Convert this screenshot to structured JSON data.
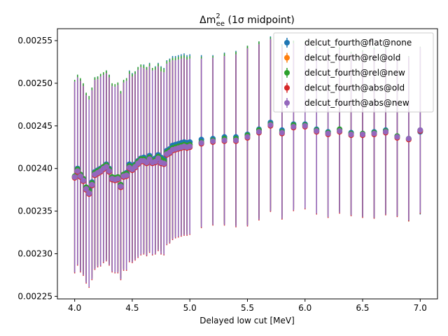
{
  "chart_data": {
    "type": "scatter",
    "title_main": "Δm",
    "title_sup": "2",
    "title_sub": "ee",
    "title_rest": " (1σ midpoint)",
    "xlabel": "Delayed low cut [MeV]",
    "ylabel": "",
    "xlim": [
      3.85,
      7.15
    ],
    "ylim": [
      0.002247,
      0.002564
    ],
    "xticks": [
      4.0,
      4.5,
      5.0,
      5.5,
      6.0,
      6.5,
      7.0
    ],
    "xtick_labels": [
      "4.0",
      "4.5",
      "5.0",
      "5.5",
      "6.0",
      "6.5",
      "7.0"
    ],
    "yticks": [
      0.00225,
      0.0023,
      0.00235,
      0.0024,
      0.00245,
      0.0025,
      0.00255
    ],
    "ytick_labels": [
      "0.00225",
      "0.00230",
      "0.00235",
      "0.00240",
      "0.00245",
      "0.00250",
      "0.00255"
    ],
    "grid": false,
    "legend_position": "top-right",
    "x": [
      4.0,
      4.025,
      4.05,
      4.075,
      4.1,
      4.125,
      4.15,
      4.175,
      4.2,
      4.225,
      4.25,
      4.275,
      4.3,
      4.325,
      4.35,
      4.375,
      4.4,
      4.425,
      4.45,
      4.475,
      4.5,
      4.525,
      4.55,
      4.575,
      4.6,
      4.625,
      4.65,
      4.675,
      4.7,
      4.725,
      4.75,
      4.775,
      4.8,
      4.825,
      4.85,
      4.875,
      4.9,
      4.925,
      4.95,
      4.975,
      5.0,
      5.1,
      5.2,
      5.3,
      5.4,
      5.5,
      5.6,
      5.7,
      5.8,
      5.9,
      6.0,
      6.1,
      6.2,
      6.3,
      6.4,
      6.5,
      6.6,
      6.7,
      6.8,
      6.9,
      7.0
    ],
    "series": [
      {
        "name": "delcut_fourth@flat@none",
        "color": "#1f77b4",
        "y": [
          0.00239,
          0.0024,
          0.002393,
          0.002388,
          0.002378,
          0.002375,
          0.002384,
          0.002396,
          0.002398,
          0.0024,
          0.002402,
          0.002405,
          0.0024,
          0.00239,
          0.002389,
          0.00239,
          0.002381,
          0.002393,
          0.002395,
          0.002405,
          0.002403,
          0.002405,
          0.002409,
          0.002412,
          0.002413,
          0.00241,
          0.002415,
          0.00241,
          0.002412,
          0.002416,
          0.002413,
          0.002411,
          0.002421,
          0.002423,
          0.002427,
          0.002428,
          0.002429,
          0.00243,
          0.002431,
          0.00243,
          0.002431,
          0.002434,
          0.002435,
          0.002437,
          0.002437,
          0.00244,
          0.002446,
          0.002454,
          0.002445,
          0.002452,
          0.002452,
          0.002446,
          0.002443,
          0.002446,
          0.002442,
          0.002441,
          0.002443,
          0.002445,
          0.002438,
          0.002435,
          0.002443
        ],
        "err": [
          0.000112,
          0.00011,
          0.000112,
          0.000111,
          0.00011,
          0.00011,
          0.000111,
          0.000111,
          0.00011,
          0.000111,
          0.00011,
          0.00011,
          0.00011,
          0.000109,
          0.000109,
          0.00011,
          0.000109,
          0.00011,
          0.000111,
          0.00011,
          0.000109,
          0.000109,
          0.00011,
          0.00011,
          0.000109,
          0.000109,
          0.000109,
          0.000108,
          0.000108,
          0.000108,
          0.000107,
          0.000107,
          0.000106,
          0.000106,
          0.000105,
          0.000104,
          0.000104,
          0.000104,
          0.000104,
          0.000103,
          0.000103,
          9.9e-05,
          9.8e-05,
          9.9e-05,
          0.000101,
          0.000104,
          0.000103,
          0.000101,
          0.000101,
          9.8e-05,
          9.7e-05,
          9.7e-05,
          9.8e-05,
          9.6e-05,
          9.5e-05,
          9.7e-05,
          9.9e-05,
          9.7e-05,
          9.3e-05,
          9.6e-05,
          9.7e-05
        ]
      },
      {
        "name": "delcut_fourth@rel@old",
        "color": "#ff7f0e",
        "y": [
          0.00239,
          0.002398,
          0.002392,
          0.002387,
          0.002377,
          0.002373,
          0.002382,
          0.002394,
          0.002396,
          0.002398,
          0.002401,
          0.002403,
          0.002398,
          0.002389,
          0.002388,
          0.002389,
          0.00238,
          0.002392,
          0.002393,
          0.002402,
          0.0024,
          0.002403,
          0.002407,
          0.00241,
          0.00241,
          0.002408,
          0.002412,
          0.002408,
          0.002409,
          0.002413,
          0.00241,
          0.002408,
          0.002418,
          0.00242,
          0.002423,
          0.002424,
          0.002425,
          0.002426,
          0.002427,
          0.002426,
          0.002427,
          0.00243,
          0.002432,
          0.002434,
          0.002434,
          0.002438,
          0.002444,
          0.002451,
          0.002442,
          0.00245,
          0.00245,
          0.002444,
          0.002441,
          0.002445,
          0.00244,
          0.00244,
          0.002441,
          0.002443,
          0.002437,
          0.002434,
          0.002444
        ],
        "err": [
          0.000112,
          0.00011,
          0.000112,
          0.000111,
          0.00011,
          0.00011,
          0.000111,
          0.000111,
          0.00011,
          0.000111,
          0.00011,
          0.00011,
          0.00011,
          0.000109,
          0.000109,
          0.00011,
          0.000109,
          0.00011,
          0.000111,
          0.00011,
          0.000109,
          0.000109,
          0.00011,
          0.00011,
          0.000109,
          0.000109,
          0.000109,
          0.000108,
          0.000108,
          0.000108,
          0.000107,
          0.000107,
          0.000106,
          0.000106,
          0.000105,
          0.000104,
          0.000104,
          0.000104,
          0.000104,
          0.000103,
          0.000103,
          9.9e-05,
          9.8e-05,
          9.9e-05,
          0.000101,
          0.000104,
          0.000103,
          0.000101,
          0.000101,
          9.8e-05,
          9.7e-05,
          9.7e-05,
          9.8e-05,
          9.6e-05,
          9.5e-05,
          9.7e-05,
          9.9e-05,
          9.7e-05,
          9.3e-05,
          9.6e-05,
          9.7e-05
        ]
      },
      {
        "name": "delcut_fourth@rel@new",
        "color": "#2ca02c",
        "y": [
          0.002391,
          0.002399,
          0.002393,
          0.002388,
          0.002378,
          0.002374,
          0.002383,
          0.002395,
          0.002397,
          0.002399,
          0.002402,
          0.002404,
          0.002399,
          0.00239,
          0.002389,
          0.00239,
          0.002381,
          0.002393,
          0.002394,
          0.002403,
          0.002401,
          0.002404,
          0.002408,
          0.002411,
          0.002411,
          0.002409,
          0.002413,
          0.002409,
          0.00241,
          0.002414,
          0.002411,
          0.002409,
          0.002419,
          0.002421,
          0.002424,
          0.002425,
          0.002426,
          0.002427,
          0.002428,
          0.002427,
          0.002428,
          0.002431,
          0.002433,
          0.002435,
          0.002435,
          0.002439,
          0.002445,
          0.002452,
          0.002443,
          0.002451,
          0.002451,
          0.002445,
          0.002442,
          0.002446,
          0.002441,
          0.002441,
          0.002442,
          0.002444,
          0.002438,
          0.002435,
          0.002445
        ],
        "err": [
          0.000113,
          0.000111,
          0.000113,
          0.000112,
          0.000111,
          0.000111,
          0.000112,
          0.000112,
          0.000111,
          0.000112,
          0.000111,
          0.000111,
          0.000111,
          0.00011,
          0.00011,
          0.000111,
          0.00011,
          0.000111,
          0.000112,
          0.000111,
          0.00011,
          0.00011,
          0.000111,
          0.000111,
          0.00011,
          0.00011,
          0.00011,
          0.000109,
          0.000109,
          0.000109,
          0.000108,
          0.000108,
          0.000107,
          0.000107,
          0.000106,
          0.000105,
          0.000105,
          0.000105,
          0.000105,
          0.000104,
          0.000104,
          0.0001,
          9.9e-05,
          0.0001,
          0.000102,
          0.000105,
          0.000104,
          0.000102,
          0.000102,
          9.9e-05,
          9.8e-05,
          9.8e-05,
          9.9e-05,
          9.7e-05,
          9.6e-05,
          9.8e-05,
          0.0001,
          9.8e-05,
          9.4e-05,
          9.7e-05,
          9.8e-05
        ]
      },
      {
        "name": "delcut_fourth@abs@old",
        "color": "#d62728",
        "y": [
          0.002389,
          0.002396,
          0.00239,
          0.002385,
          0.002375,
          0.00237,
          0.00238,
          0.002392,
          0.002394,
          0.002396,
          0.002399,
          0.002401,
          0.002396,
          0.002387,
          0.002386,
          0.002387,
          0.002378,
          0.00239,
          0.002391,
          0.0024,
          0.002398,
          0.002401,
          0.002405,
          0.002408,
          0.002408,
          0.002406,
          0.00241,
          0.002406,
          0.002407,
          0.002411,
          0.002406,
          0.002405,
          0.002416,
          0.002418,
          0.002421,
          0.002422,
          0.002423,
          0.002424,
          0.002425,
          0.002424,
          0.002425,
          0.002429,
          0.002431,
          0.002432,
          0.002432,
          0.002436,
          0.002442,
          0.00245,
          0.002441,
          0.002448,
          0.002449,
          0.002443,
          0.00244,
          0.002443,
          0.002439,
          0.002439,
          0.00244,
          0.002442,
          0.002436,
          0.002434,
          0.002444
        ],
        "err": [
          0.000112,
          0.00011,
          0.000112,
          0.000111,
          0.00011,
          0.00011,
          0.000111,
          0.000111,
          0.00011,
          0.000111,
          0.00011,
          0.00011,
          0.00011,
          0.000109,
          0.000109,
          0.00011,
          0.000109,
          0.00011,
          0.000111,
          0.00011,
          0.000109,
          0.000109,
          0.00011,
          0.00011,
          0.000109,
          0.000109,
          0.000109,
          0.000108,
          0.000108,
          0.000108,
          0.000107,
          0.000107,
          0.000106,
          0.000106,
          0.000105,
          0.000104,
          0.000104,
          0.000104,
          0.000104,
          0.000103,
          0.000103,
          9.9e-05,
          9.8e-05,
          9.9e-05,
          0.000101,
          0.000104,
          0.000103,
          0.000101,
          0.000101,
          9.8e-05,
          9.7e-05,
          9.7e-05,
          9.8e-05,
          9.6e-05,
          9.5e-05,
          9.7e-05,
          9.9e-05,
          9.7e-05,
          9.3e-05,
          9.6e-05,
          9.7e-05
        ]
      },
      {
        "name": "delcut_fourth@abs@new",
        "color": "#9467bd",
        "y": [
          0.00239,
          0.002397,
          0.002391,
          0.002386,
          0.002376,
          0.002371,
          0.002381,
          0.002393,
          0.002395,
          0.002397,
          0.0024,
          0.002402,
          0.002397,
          0.002388,
          0.002387,
          0.002388,
          0.002379,
          0.002391,
          0.002392,
          0.002401,
          0.002399,
          0.002402,
          0.002406,
          0.002409,
          0.002409,
          0.002407,
          0.002411,
          0.002407,
          0.002408,
          0.002412,
          0.002407,
          0.002406,
          0.002417,
          0.002419,
          0.002422,
          0.002423,
          0.002424,
          0.002425,
          0.002426,
          0.002425,
          0.002426,
          0.00243,
          0.002432,
          0.002433,
          0.002433,
          0.002437,
          0.002443,
          0.002451,
          0.002442,
          0.002449,
          0.00245,
          0.002444,
          0.002441,
          0.002444,
          0.00244,
          0.00244,
          0.002441,
          0.002443,
          0.002437,
          0.002435,
          0.002445
        ],
        "err": [
          0.000112,
          0.00011,
          0.000112,
          0.000111,
          0.00011,
          0.00011,
          0.000111,
          0.000111,
          0.00011,
          0.000111,
          0.00011,
          0.00011,
          0.00011,
          0.000109,
          0.000109,
          0.00011,
          0.000109,
          0.00011,
          0.000111,
          0.00011,
          0.000109,
          0.000109,
          0.00011,
          0.00011,
          0.000109,
          0.000109,
          0.000109,
          0.000108,
          0.000108,
          0.000108,
          0.000107,
          0.000107,
          0.000106,
          0.000106,
          0.000105,
          0.000104,
          0.000104,
          0.000104,
          0.000104,
          0.000103,
          0.000103,
          9.9e-05,
          9.8e-05,
          9.9e-05,
          0.000101,
          0.000104,
          0.000103,
          0.000101,
          0.000101,
          9.8e-05,
          9.7e-05,
          9.7e-05,
          9.8e-05,
          9.6e-05,
          9.5e-05,
          9.7e-05,
          9.9e-05,
          9.7e-05,
          9.3e-05,
          9.6e-05,
          9.7e-05
        ]
      }
    ]
  }
}
